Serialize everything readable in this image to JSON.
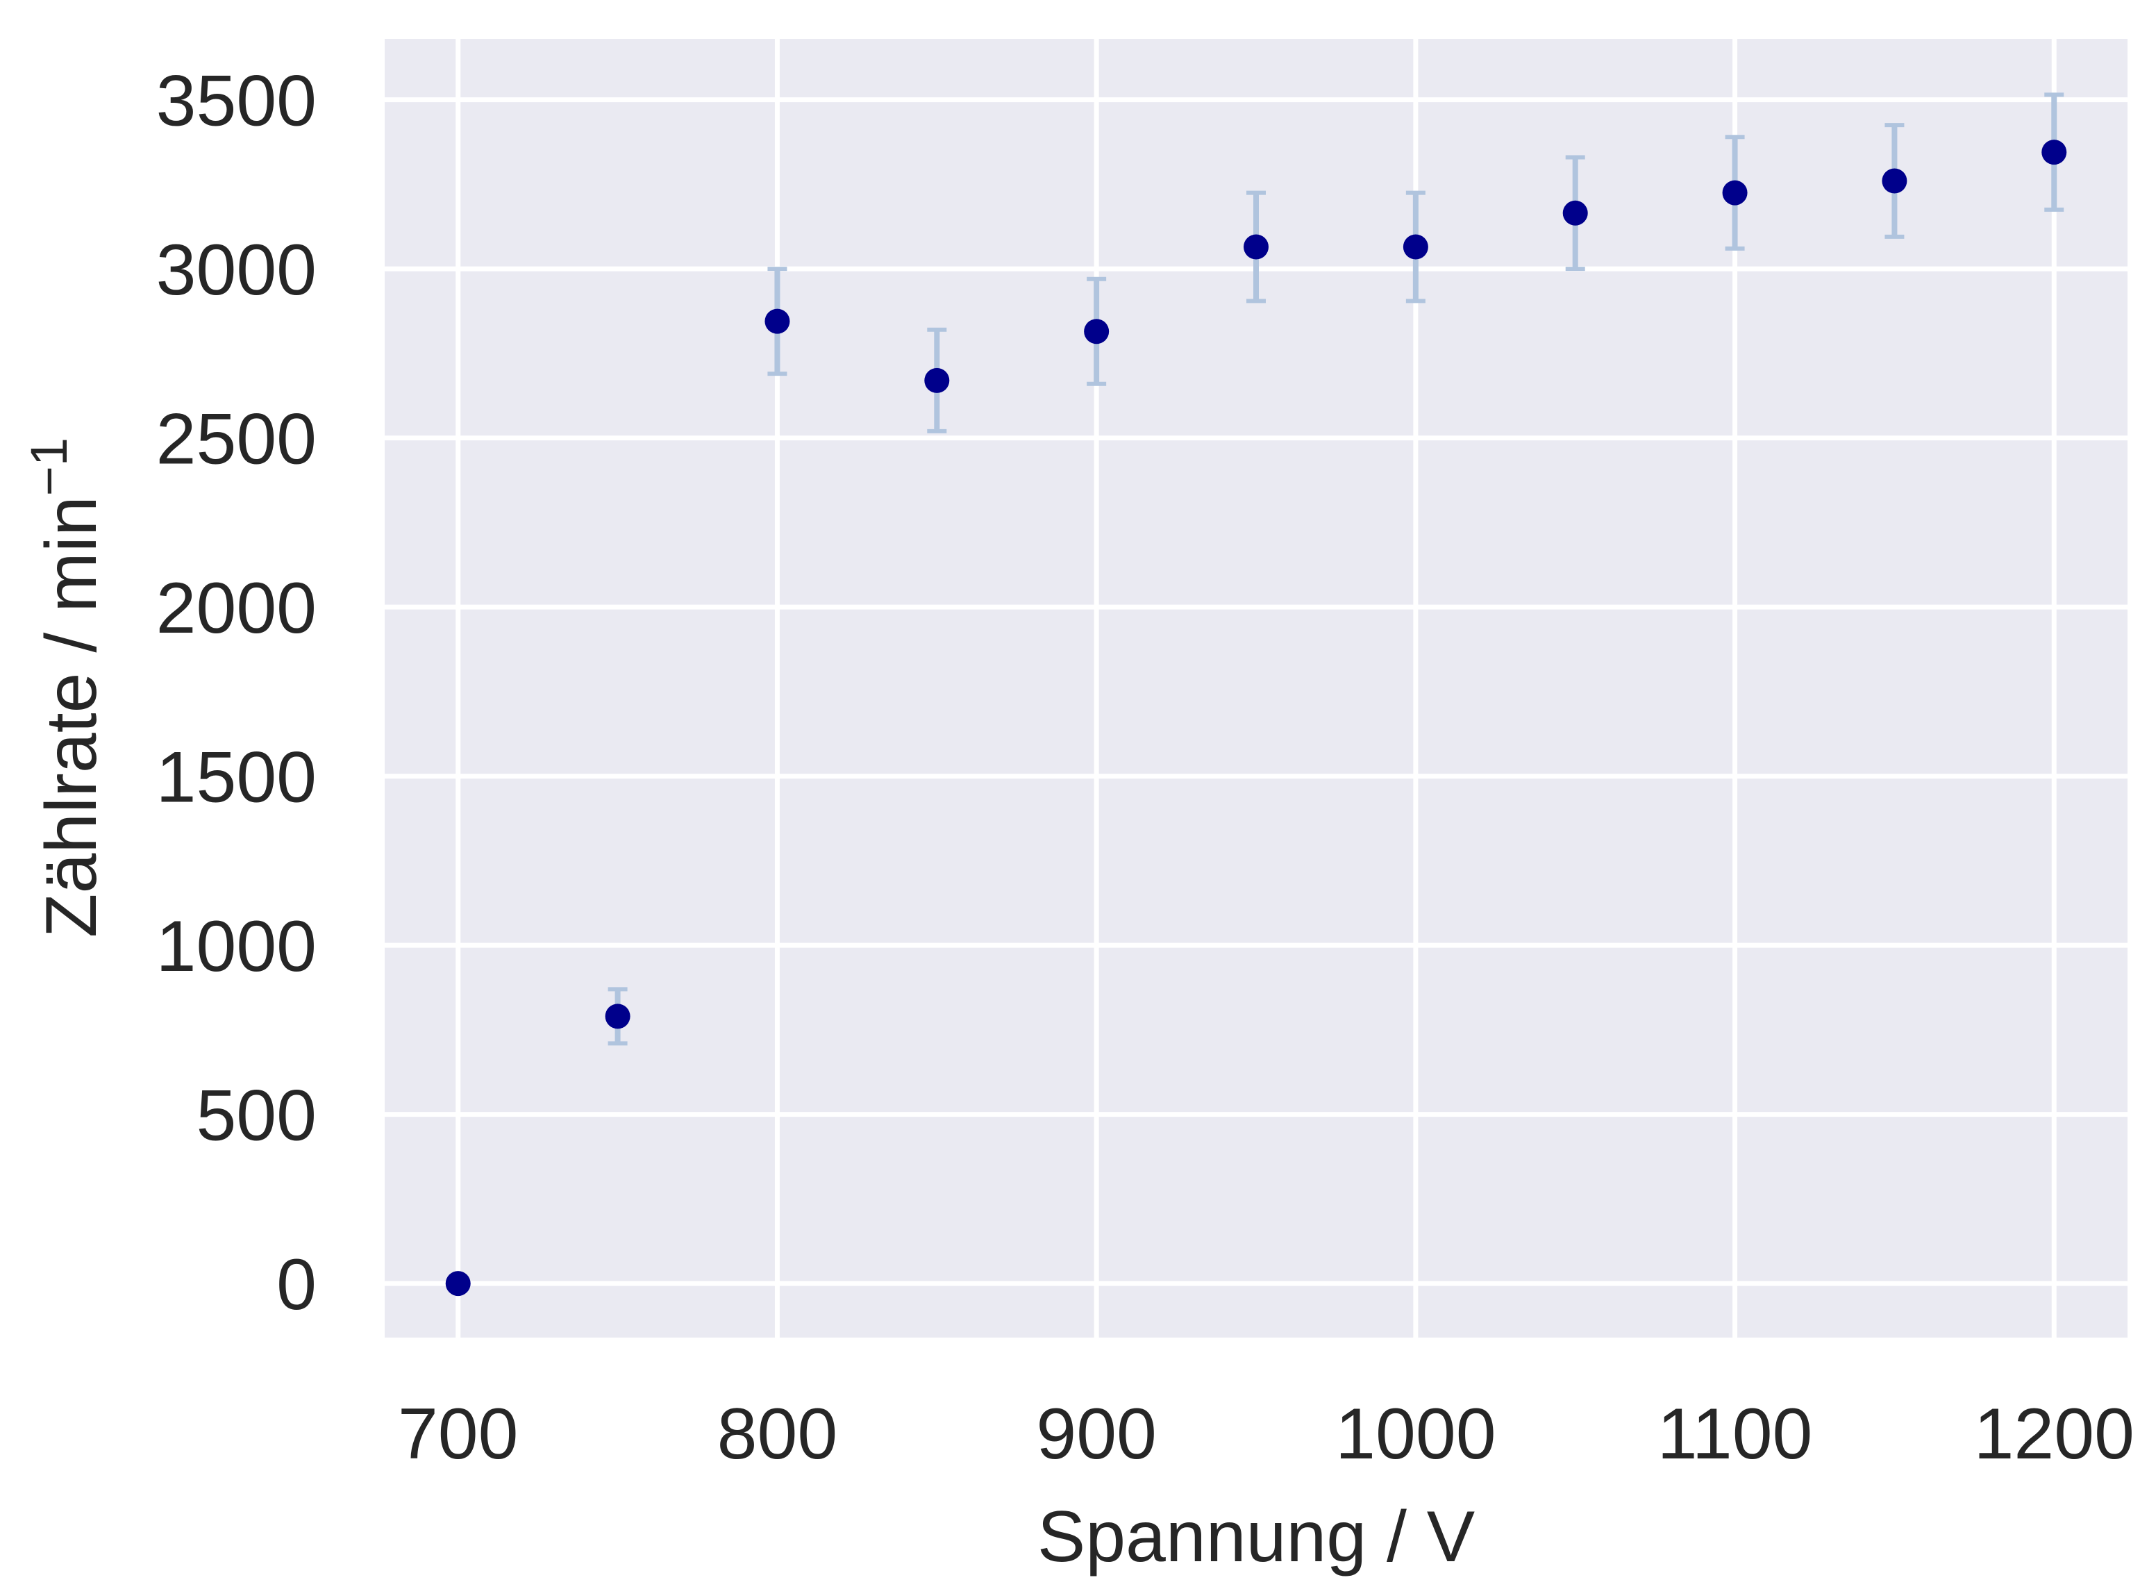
{
  "chart_data": {
    "type": "scatter",
    "title": "",
    "xlabel": "Spannung / V",
    "ylabel_main": "Zählrate / min",
    "ylabel_superscript": "−1",
    "xlim": [
      677,
      1223
    ],
    "ylim": [
      -160,
      3680
    ],
    "xticks": [
      700,
      800,
      900,
      1000,
      1100,
      1200
    ],
    "xtick_labels": [
      "700",
      "800",
      "900",
      "1000",
      "1100",
      "1200"
    ],
    "yticks": [
      0,
      500,
      1000,
      1500,
      2000,
      2500,
      3000,
      3500
    ],
    "ytick_labels": [
      "0",
      "500",
      "1000",
      "1500",
      "2000",
      "2500",
      "3000",
      "3500"
    ],
    "grid": true,
    "legend": "none",
    "colors": {
      "plot_background": "#eaeaf2",
      "grid": "#ffffff",
      "marker": "#00008b",
      "errorbar": "#b0c4de",
      "text": "#262626"
    },
    "series": [
      {
        "x": [
          700,
          750,
          800,
          850,
          900,
          950,
          1000,
          1050,
          1100,
          1150,
          1200
        ],
        "y": [
          0,
          790,
          2845,
          2670,
          2815,
          3065,
          3065,
          3165,
          3225,
          3260,
          3345
        ],
        "yerr": [
          0,
          80,
          155,
          150,
          155,
          160,
          160,
          165,
          165,
          165,
          170
        ]
      }
    ]
  }
}
